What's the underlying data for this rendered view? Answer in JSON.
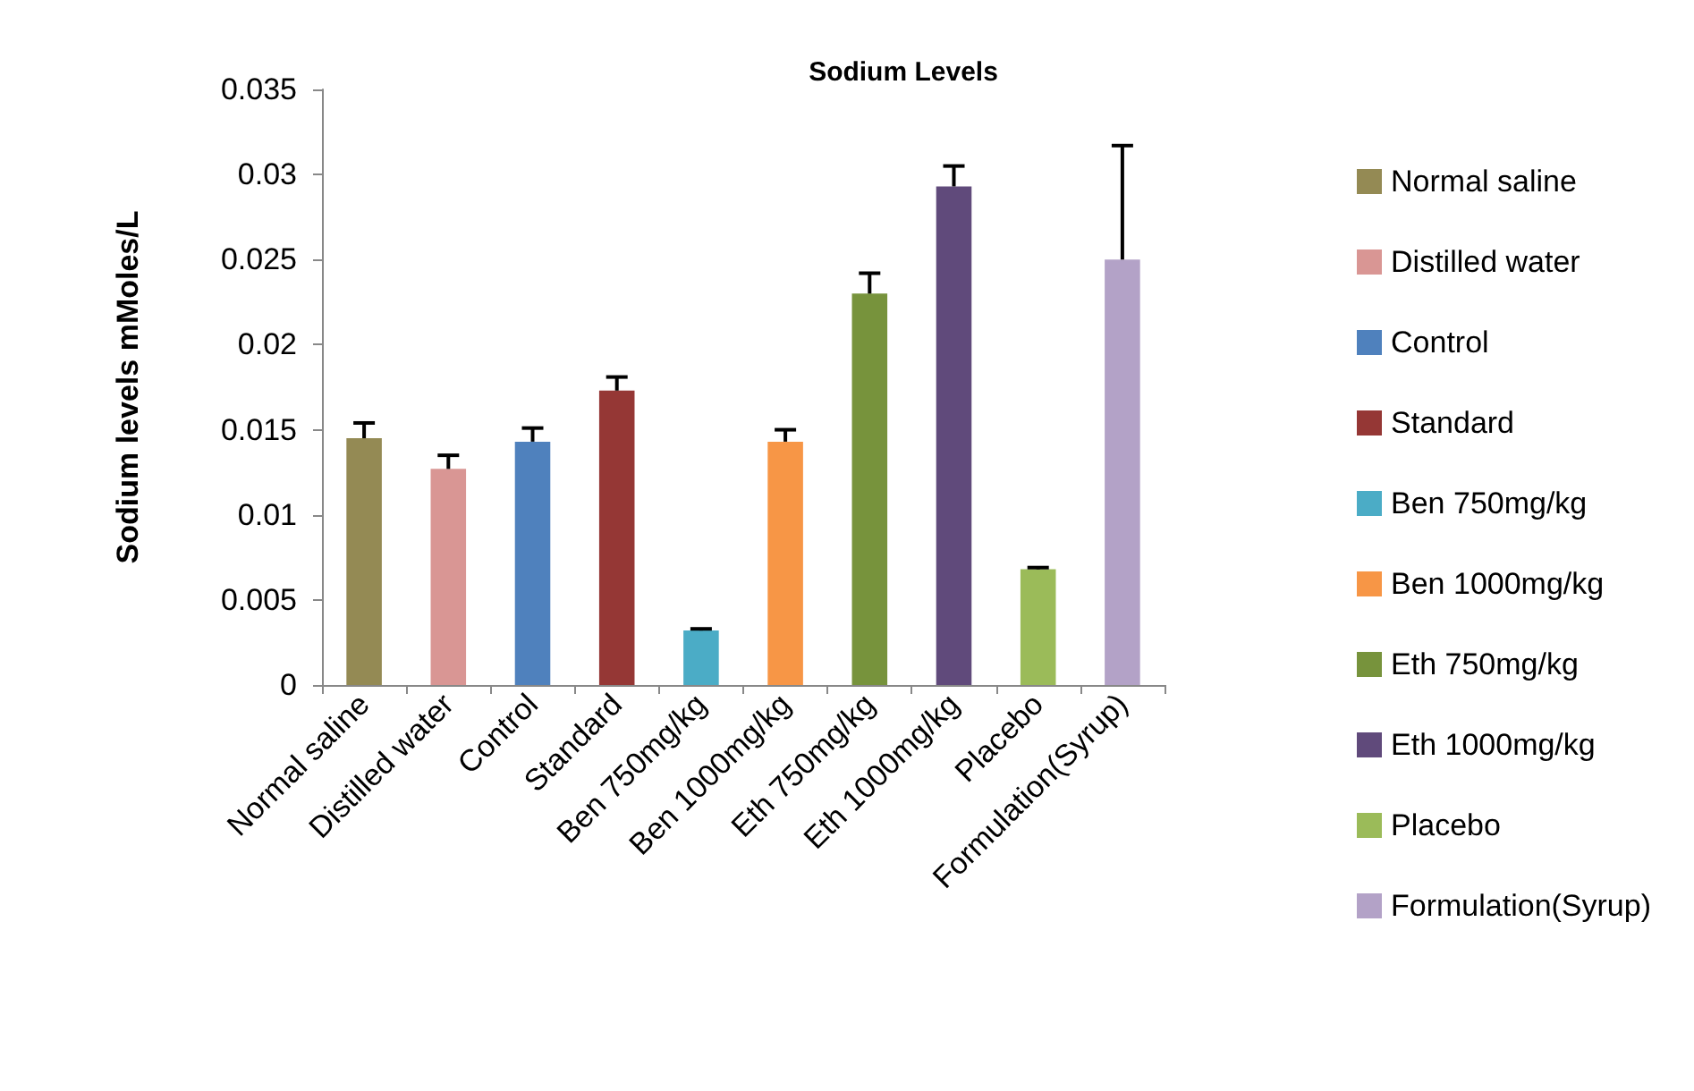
{
  "chart_data": {
    "type": "bar",
    "title": "Sodium Levels",
    "ylabel": "Sodium levels mMoles/L",
    "categories": [
      "Normal saline",
      "Distilled water",
      "Control",
      "Standard",
      "Ben 750mg/kg",
      "Ben 1000mg/kg",
      "Eth 750mg/kg",
      "Eth 1000mg/kg",
      "Placebo",
      "Formulation(Syrup)"
    ],
    "series": [
      {
        "name": "Normal saline",
        "color": "#948a54",
        "values": [
          0.0145,
          null,
          null,
          null,
          null,
          null,
          null,
          null,
          null,
          null
        ],
        "errors": [
          [
            0.0145,
            0.0154
          ],
          null,
          null,
          null,
          null,
          null,
          null,
          null,
          null,
          null
        ]
      },
      {
        "name": "Distilled water",
        "color": "#d99694",
        "values": [
          null,
          0.0127,
          null,
          null,
          null,
          null,
          null,
          null,
          null,
          null
        ],
        "errors": [
          null,
          [
            0.0127,
            0.0135
          ],
          null,
          null,
          null,
          null,
          null,
          null,
          null,
          null
        ]
      },
      {
        "name": "Control",
        "color": "#4f81bd",
        "values": [
          null,
          null,
          0.0143,
          null,
          null,
          null,
          null,
          null,
          null,
          null
        ],
        "errors": [
          null,
          null,
          [
            0.0143,
            0.0151
          ],
          null,
          null,
          null,
          null,
          null,
          null,
          null
        ]
      },
      {
        "name": "Standard",
        "color": "#953735",
        "values": [
          null,
          null,
          null,
          0.0173,
          null,
          null,
          null,
          null,
          null,
          null
        ],
        "errors": [
          null,
          null,
          null,
          [
            0.0173,
            0.0181
          ],
          null,
          null,
          null,
          null,
          null,
          null
        ]
      },
      {
        "name": "Ben 750mg/kg",
        "color": "#4bacc6",
        "values": [
          null,
          null,
          null,
          null,
          0.0032,
          null,
          null,
          null,
          null,
          null
        ],
        "errors": [
          null,
          null,
          null,
          null,
          [
            0.0032,
            0.0033
          ],
          null,
          null,
          null,
          null,
          null
        ]
      },
      {
        "name": "Ben 1000mg/kg",
        "color": "#f79646",
        "values": [
          null,
          null,
          null,
          null,
          null,
          0.0143,
          null,
          null,
          null,
          null
        ],
        "errors": [
          null,
          null,
          null,
          null,
          null,
          [
            0.0143,
            0.015
          ],
          null,
          null,
          null,
          null
        ]
      },
      {
        "name": "Eth 750mg/kg",
        "color": "#77933c",
        "values": [
          null,
          null,
          null,
          null,
          null,
          null,
          0.023,
          null,
          null,
          null
        ],
        "errors": [
          null,
          null,
          null,
          null,
          null,
          null,
          [
            0.023,
            0.0242
          ],
          null,
          null,
          null
        ]
      },
      {
        "name": "Eth 1000mg/kg",
        "color": "#604a7b",
        "values": [
          null,
          null,
          null,
          null,
          null,
          null,
          null,
          0.0293,
          null,
          null
        ],
        "errors": [
          null,
          null,
          null,
          null,
          null,
          null,
          null,
          [
            0.0293,
            0.0305
          ],
          null,
          null
        ]
      },
      {
        "name": "Placebo",
        "color": "#9bbb59",
        "values": [
          null,
          null,
          null,
          null,
          null,
          null,
          null,
          null,
          0.0068,
          null
        ],
        "errors": [
          null,
          null,
          null,
          null,
          null,
          null,
          null,
          null,
          [
            0.0068,
            0.0069
          ],
          null
        ]
      },
      {
        "name": "Formulation(Syrup)",
        "color": "#b3a2c7",
        "values": [
          null,
          null,
          null,
          null,
          null,
          null,
          null,
          null,
          null,
          0.025
        ],
        "errors": [
          null,
          null,
          null,
          null,
          null,
          null,
          null,
          null,
          null,
          [
            0.025,
            0.0317
          ]
        ]
      }
    ],
    "ylim": [
      0,
      0.035
    ],
    "yticks": [
      0,
      0.005,
      0.01,
      0.015,
      0.02,
      0.025,
      0.03,
      0.035
    ],
    "grid": false,
    "legend": "right"
  }
}
